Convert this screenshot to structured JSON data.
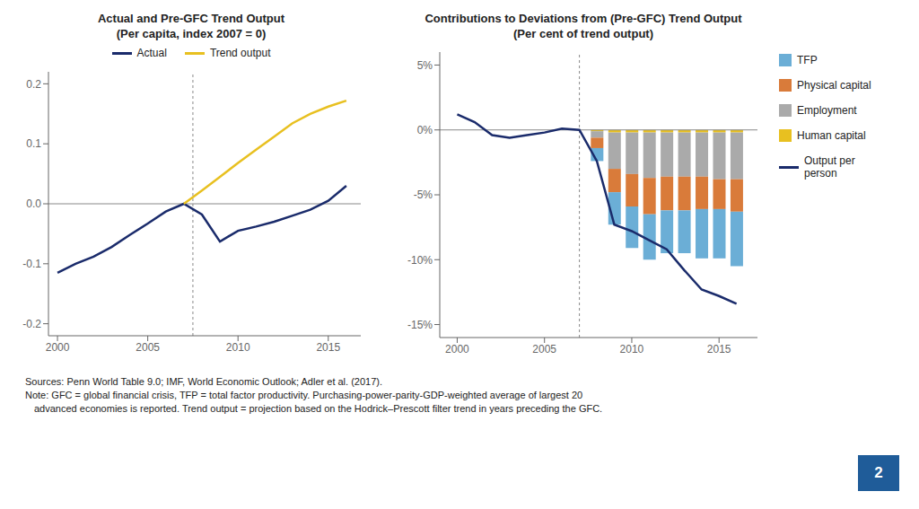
{
  "chart_data": [
    {
      "type": "line",
      "title": "Actual and Pre-GFC Trend Output\n(Per capita, index 2007 = 0)",
      "x": [
        2000,
        2001,
        2002,
        2003,
        2004,
        2005,
        2006,
        2007,
        2008,
        2009,
        2010,
        2011,
        2012,
        2013,
        2014,
        2015,
        2016
      ],
      "series": [
        {
          "name": "Actual",
          "color": "#1A2B6B",
          "values": [
            -0.115,
            -0.1,
            -0.088,
            -0.072,
            -0.052,
            -0.033,
            -0.013,
            0.0,
            -0.018,
            -0.063,
            -0.045,
            -0.038,
            -0.03,
            -0.02,
            -0.01,
            0.005,
            0.03
          ]
        },
        {
          "name": "Trend output",
          "color": "#E8C020",
          "values": [
            null,
            null,
            null,
            null,
            null,
            null,
            null,
            0.0,
            0.022,
            0.045,
            0.068,
            0.09,
            0.112,
            0.134,
            0.15,
            0.162,
            0.172
          ]
        }
      ],
      "xlim": [
        1999.5,
        2016.8
      ],
      "xticks": [
        2000,
        2005,
        2010,
        2015
      ],
      "ylim": [
        -0.22,
        0.22
      ],
      "yticks": [
        -0.2,
        -0.1,
        {
          "value": 0.0,
          "label": "0.0"
        },
        0.1,
        0.2
      ],
      "hline": 0,
      "vline": 2007.5,
      "grid": false,
      "legend": "top"
    },
    {
      "type": "bar",
      "stacked": true,
      "title": "Contributions to Deviations from (Pre-GFC) Trend Output\n(Per cent of trend output)",
      "x": [
        2000,
        2001,
        2002,
        2003,
        2004,
        2005,
        2006,
        2007,
        2008,
        2009,
        2010,
        2011,
        2012,
        2013,
        2014,
        2015,
        2016
      ],
      "series": [
        {
          "name": "Human capital",
          "type": "bar",
          "color": "#E8C020",
          "values": [
            null,
            null,
            null,
            null,
            null,
            null,
            null,
            null,
            -0.1,
            -0.2,
            -0.2,
            -0.2,
            -0.2,
            -0.2,
            -0.2,
            -0.2,
            -0.2
          ]
        },
        {
          "name": "Employment",
          "type": "bar",
          "color": "#AAAAAA",
          "values": [
            null,
            null,
            null,
            null,
            null,
            null,
            null,
            null,
            -0.5,
            -2.8,
            -3.2,
            -3.5,
            -3.4,
            -3.4,
            -3.4,
            -3.6,
            -3.6
          ]
        },
        {
          "name": "Physical capital",
          "type": "bar",
          "color": "#D97B3A",
          "values": [
            null,
            null,
            null,
            null,
            null,
            null,
            null,
            null,
            -0.8,
            -1.8,
            -2.5,
            -2.8,
            -2.6,
            -2.6,
            -2.5,
            -2.3,
            -2.5
          ]
        },
        {
          "name": "TFP",
          "type": "bar",
          "color": "#6BAED6",
          "values": [
            null,
            null,
            null,
            null,
            null,
            null,
            null,
            null,
            -1.0,
            -2.5,
            -3.2,
            -3.5,
            -3.3,
            -3.3,
            -3.8,
            -3.8,
            -4.2
          ]
        },
        {
          "name": "Output per\nperson",
          "type": "line",
          "color": "#1A2B6B",
          "values": [
            1.2,
            0.6,
            -0.4,
            -0.6,
            -0.4,
            -0.2,
            0.1,
            0.0,
            -2.4,
            -7.3,
            -7.8,
            -8.5,
            -9.2,
            -10.8,
            -12.3,
            -12.8,
            -13.4
          ]
        }
      ],
      "xlim": [
        1999.0,
        2017.2
      ],
      "xticks": [
        2000,
        2005,
        2010,
        2015
      ],
      "ylim": [
        -16,
        6
      ],
      "yticks": [
        {
          "value": -15,
          "label": "-15%"
        },
        {
          "value": -10,
          "label": "-10%"
        },
        {
          "value": -5,
          "label": "-5%"
        },
        {
          "value": 0,
          "label": "0%"
        },
        {
          "value": 5,
          "label": "5%"
        }
      ],
      "hline": 0,
      "vline": 2007.0,
      "grid": false,
      "legend": "right"
    }
  ],
  "annotations": [
    "Sources: Penn World Table 9.0; IMF, World Economic Outlook; Adler et al. (2017).",
    "Note: GFC = global financial crisis, TFP = total factor productivity. Purchasing-power-parity-GDP-weighted average of largest 20",
    "advanced economies is reported. Trend output = projection based on the Hodrick–Prescott filter trend in years preceding the GFC."
  ],
  "page": "2"
}
